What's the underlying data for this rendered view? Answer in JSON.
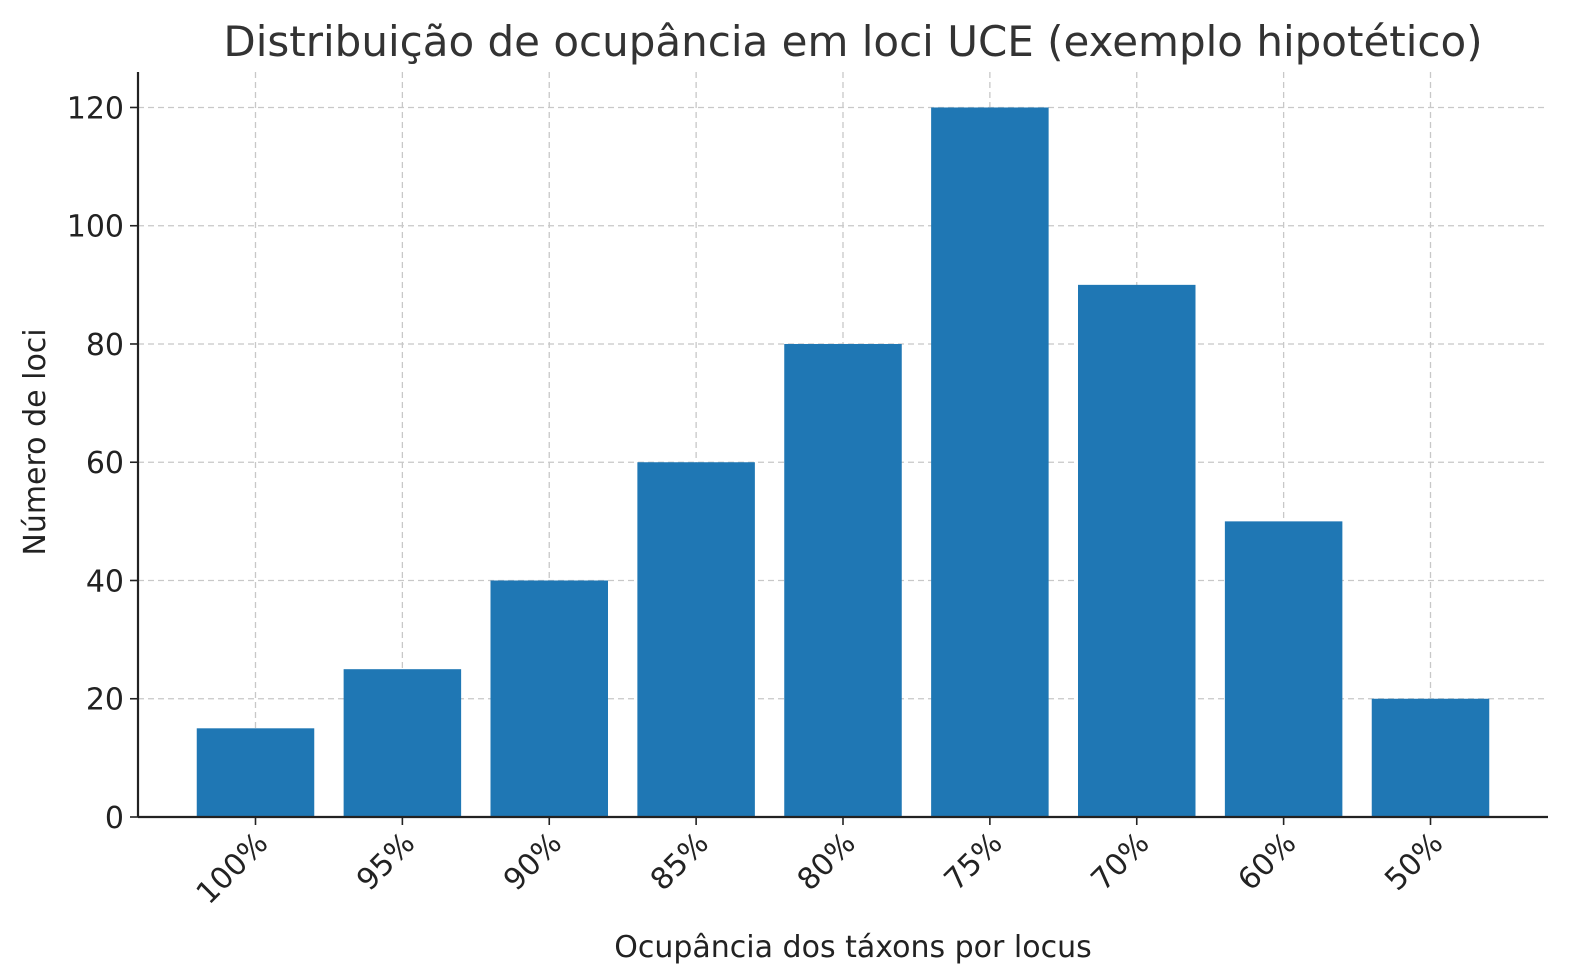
{
  "chart_data": {
    "type": "bar",
    "title": "Distribuição de ocupância em loci UCE (exemplo hipotético)",
    "xlabel": "Ocupância dos táxons por locus",
    "ylabel": "Número de loci",
    "categories": [
      "100%",
      "95%",
      "90%",
      "85%",
      "80%",
      "75%",
      "70%",
      "60%",
      "50%"
    ],
    "values": [
      15,
      25,
      40,
      60,
      80,
      120,
      90,
      50,
      20
    ],
    "ylim": [
      0,
      126
    ],
    "yticks": [
      0,
      20,
      40,
      60,
      80,
      100,
      120
    ],
    "grid": true,
    "bar_color": "#1f77b4"
  }
}
